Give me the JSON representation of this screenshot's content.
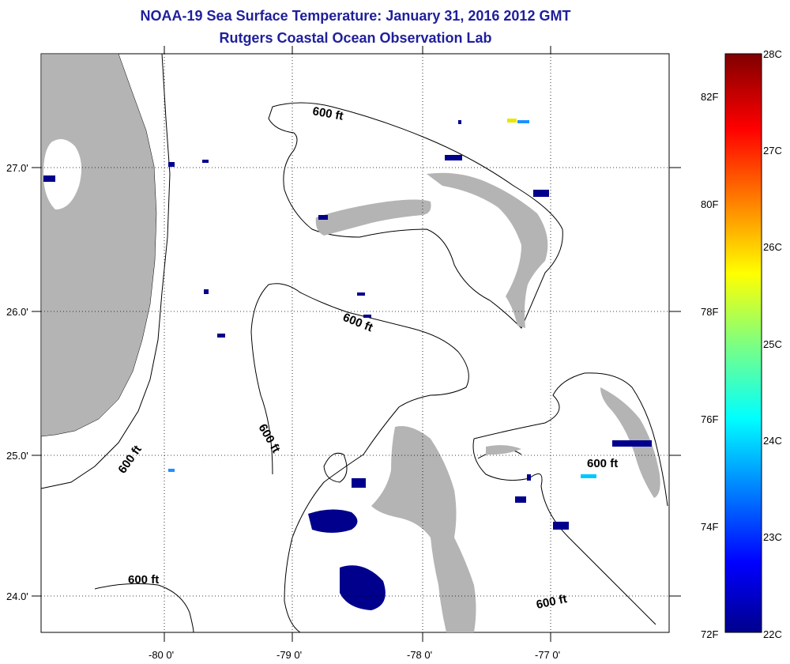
{
  "title_line1": "NOAA-19 Sea Surface Temperature:  January 31, 2016 2012 GMT",
  "title_line2": "Rutgers Coastal Ocean Observation Lab",
  "lat_labels": [
    "27.0'",
    "26.0'",
    "25.0'",
    "24.0'"
  ],
  "lon_labels": [
    "-80 0'",
    "-79 0'",
    "-78 0'",
    "-77 0'"
  ],
  "contour_label": "600 ft",
  "colorbar": {
    "fahrenheit": [
      "82F",
      "80F",
      "78F",
      "76F",
      "74F",
      "72F"
    ],
    "celsius": [
      "28C",
      "27C",
      "26C",
      "25C",
      "24C",
      "23C",
      "22C"
    ]
  },
  "colors": {
    "land": "#b4b4b4",
    "title": "#1f1f9c",
    "cold_sst": "#00008c"
  }
}
